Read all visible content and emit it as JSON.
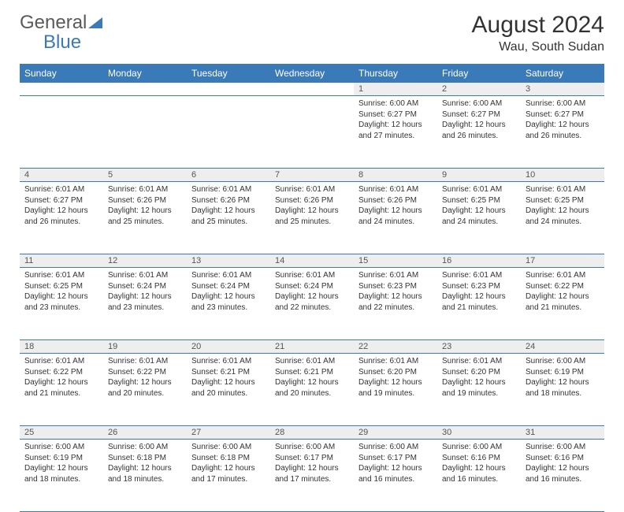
{
  "logo": {
    "part1": "General",
    "part2": "Blue"
  },
  "title": "August 2024",
  "location": "Wau, South Sudan",
  "colors": {
    "header_bg": "#3a7ab8",
    "daynum_bg": "#eeeeee",
    "text": "#333333"
  },
  "day_headers": [
    "Sunday",
    "Monday",
    "Tuesday",
    "Wednesday",
    "Thursday",
    "Friday",
    "Saturday"
  ],
  "weeks": [
    {
      "nums": [
        "",
        "",
        "",
        "",
        "1",
        "2",
        "3"
      ],
      "cells": [
        null,
        null,
        null,
        null,
        {
          "sunrise": "Sunrise: 6:00 AM",
          "sunset": "Sunset: 6:27 PM",
          "day1": "Daylight: 12 hours",
          "day2": "and 27 minutes."
        },
        {
          "sunrise": "Sunrise: 6:00 AM",
          "sunset": "Sunset: 6:27 PM",
          "day1": "Daylight: 12 hours",
          "day2": "and 26 minutes."
        },
        {
          "sunrise": "Sunrise: 6:00 AM",
          "sunset": "Sunset: 6:27 PM",
          "day1": "Daylight: 12 hours",
          "day2": "and 26 minutes."
        }
      ]
    },
    {
      "nums": [
        "4",
        "5",
        "6",
        "7",
        "8",
        "9",
        "10"
      ],
      "cells": [
        {
          "sunrise": "Sunrise: 6:01 AM",
          "sunset": "Sunset: 6:27 PM",
          "day1": "Daylight: 12 hours",
          "day2": "and 26 minutes."
        },
        {
          "sunrise": "Sunrise: 6:01 AM",
          "sunset": "Sunset: 6:26 PM",
          "day1": "Daylight: 12 hours",
          "day2": "and 25 minutes."
        },
        {
          "sunrise": "Sunrise: 6:01 AM",
          "sunset": "Sunset: 6:26 PM",
          "day1": "Daylight: 12 hours",
          "day2": "and 25 minutes."
        },
        {
          "sunrise": "Sunrise: 6:01 AM",
          "sunset": "Sunset: 6:26 PM",
          "day1": "Daylight: 12 hours",
          "day2": "and 25 minutes."
        },
        {
          "sunrise": "Sunrise: 6:01 AM",
          "sunset": "Sunset: 6:26 PM",
          "day1": "Daylight: 12 hours",
          "day2": "and 24 minutes."
        },
        {
          "sunrise": "Sunrise: 6:01 AM",
          "sunset": "Sunset: 6:25 PM",
          "day1": "Daylight: 12 hours",
          "day2": "and 24 minutes."
        },
        {
          "sunrise": "Sunrise: 6:01 AM",
          "sunset": "Sunset: 6:25 PM",
          "day1": "Daylight: 12 hours",
          "day2": "and 24 minutes."
        }
      ]
    },
    {
      "nums": [
        "11",
        "12",
        "13",
        "14",
        "15",
        "16",
        "17"
      ],
      "cells": [
        {
          "sunrise": "Sunrise: 6:01 AM",
          "sunset": "Sunset: 6:25 PM",
          "day1": "Daylight: 12 hours",
          "day2": "and 23 minutes."
        },
        {
          "sunrise": "Sunrise: 6:01 AM",
          "sunset": "Sunset: 6:24 PM",
          "day1": "Daylight: 12 hours",
          "day2": "and 23 minutes."
        },
        {
          "sunrise": "Sunrise: 6:01 AM",
          "sunset": "Sunset: 6:24 PM",
          "day1": "Daylight: 12 hours",
          "day2": "and 23 minutes."
        },
        {
          "sunrise": "Sunrise: 6:01 AM",
          "sunset": "Sunset: 6:24 PM",
          "day1": "Daylight: 12 hours",
          "day2": "and 22 minutes."
        },
        {
          "sunrise": "Sunrise: 6:01 AM",
          "sunset": "Sunset: 6:23 PM",
          "day1": "Daylight: 12 hours",
          "day2": "and 22 minutes."
        },
        {
          "sunrise": "Sunrise: 6:01 AM",
          "sunset": "Sunset: 6:23 PM",
          "day1": "Daylight: 12 hours",
          "day2": "and 21 minutes."
        },
        {
          "sunrise": "Sunrise: 6:01 AM",
          "sunset": "Sunset: 6:22 PM",
          "day1": "Daylight: 12 hours",
          "day2": "and 21 minutes."
        }
      ]
    },
    {
      "nums": [
        "18",
        "19",
        "20",
        "21",
        "22",
        "23",
        "24"
      ],
      "cells": [
        {
          "sunrise": "Sunrise: 6:01 AM",
          "sunset": "Sunset: 6:22 PM",
          "day1": "Daylight: 12 hours",
          "day2": "and 21 minutes."
        },
        {
          "sunrise": "Sunrise: 6:01 AM",
          "sunset": "Sunset: 6:22 PM",
          "day1": "Daylight: 12 hours",
          "day2": "and 20 minutes."
        },
        {
          "sunrise": "Sunrise: 6:01 AM",
          "sunset": "Sunset: 6:21 PM",
          "day1": "Daylight: 12 hours",
          "day2": "and 20 minutes."
        },
        {
          "sunrise": "Sunrise: 6:01 AM",
          "sunset": "Sunset: 6:21 PM",
          "day1": "Daylight: 12 hours",
          "day2": "and 20 minutes."
        },
        {
          "sunrise": "Sunrise: 6:01 AM",
          "sunset": "Sunset: 6:20 PM",
          "day1": "Daylight: 12 hours",
          "day2": "and 19 minutes."
        },
        {
          "sunrise": "Sunrise: 6:01 AM",
          "sunset": "Sunset: 6:20 PM",
          "day1": "Daylight: 12 hours",
          "day2": "and 19 minutes."
        },
        {
          "sunrise": "Sunrise: 6:00 AM",
          "sunset": "Sunset: 6:19 PM",
          "day1": "Daylight: 12 hours",
          "day2": "and 18 minutes."
        }
      ]
    },
    {
      "nums": [
        "25",
        "26",
        "27",
        "28",
        "29",
        "30",
        "31"
      ],
      "cells": [
        {
          "sunrise": "Sunrise: 6:00 AM",
          "sunset": "Sunset: 6:19 PM",
          "day1": "Daylight: 12 hours",
          "day2": "and 18 minutes."
        },
        {
          "sunrise": "Sunrise: 6:00 AM",
          "sunset": "Sunset: 6:18 PM",
          "day1": "Daylight: 12 hours",
          "day2": "and 18 minutes."
        },
        {
          "sunrise": "Sunrise: 6:00 AM",
          "sunset": "Sunset: 6:18 PM",
          "day1": "Daylight: 12 hours",
          "day2": "and 17 minutes."
        },
        {
          "sunrise": "Sunrise: 6:00 AM",
          "sunset": "Sunset: 6:17 PM",
          "day1": "Daylight: 12 hours",
          "day2": "and 17 minutes."
        },
        {
          "sunrise": "Sunrise: 6:00 AM",
          "sunset": "Sunset: 6:17 PM",
          "day1": "Daylight: 12 hours",
          "day2": "and 16 minutes."
        },
        {
          "sunrise": "Sunrise: 6:00 AM",
          "sunset": "Sunset: 6:16 PM",
          "day1": "Daylight: 12 hours",
          "day2": "and 16 minutes."
        },
        {
          "sunrise": "Sunrise: 6:00 AM",
          "sunset": "Sunset: 6:16 PM",
          "day1": "Daylight: 12 hours",
          "day2": "and 16 minutes."
        }
      ]
    }
  ]
}
